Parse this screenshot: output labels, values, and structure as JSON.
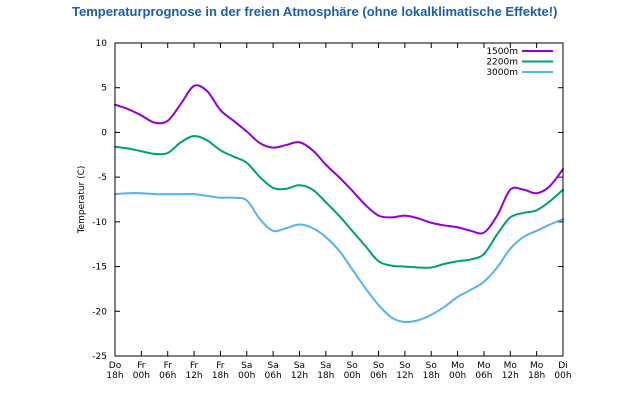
{
  "title": "Temperaturprognose in der freien Atmosphäre (ohne lokalklimatische Effekte!)",
  "chart_data": {
    "type": "line",
    "title": "Temperaturprognose in der freien Atmosphäre (ohne lokalklimatische Effekte!)",
    "xlabel": "",
    "ylabel": "Temperatur (C)",
    "ylim": [
      -25,
      10
    ],
    "yticks": [
      10,
      5,
      0,
      -5,
      -10,
      -15,
      -20,
      -25
    ],
    "grid": false,
    "legend": "top-right",
    "x_ticks": [
      {
        "day": "Do",
        "hour": "18h"
      },
      {
        "day": "Fr",
        "hour": "00h"
      },
      {
        "day": "Fr",
        "hour": "06h"
      },
      {
        "day": "Fr",
        "hour": "12h"
      },
      {
        "day": "Fr",
        "hour": "18h"
      },
      {
        "day": "Sa",
        "hour": "00h"
      },
      {
        "day": "Sa",
        "hour": "06h"
      },
      {
        "day": "Sa",
        "hour": "12h"
      },
      {
        "day": "Sa",
        "hour": "18h"
      },
      {
        "day": "So",
        "hour": "00h"
      },
      {
        "day": "So",
        "hour": "06h"
      },
      {
        "day": "So",
        "hour": "12h"
      },
      {
        "day": "So",
        "hour": "18h"
      },
      {
        "day": "Mo",
        "hour": "00h"
      },
      {
        "day": "Mo",
        "hour": "06h"
      },
      {
        "day": "Mo",
        "hour": "12h"
      },
      {
        "day": "Mo",
        "hour": "18h"
      },
      {
        "day": "Di",
        "hour": "00h"
      }
    ],
    "x": [
      "Do 18h",
      "Do 21h",
      "Fr 00h",
      "Fr 03h",
      "Fr 06h",
      "Fr 09h",
      "Fr 12h",
      "Fr 15h",
      "Fr 18h",
      "Fr 21h",
      "Sa 00h",
      "Sa 03h",
      "Sa 06h",
      "Sa 09h",
      "Sa 12h",
      "Sa 15h",
      "Sa 18h",
      "Sa 21h",
      "So 00h",
      "So 03h",
      "So 06h",
      "So 09h",
      "So 12h",
      "So 15h",
      "So 18h",
      "So 21h",
      "Mo 00h",
      "Mo 03h",
      "Mo 06h",
      "Mo 09h",
      "Mo 12h",
      "Mo 15h",
      "Mo 18h",
      "Mo 21h",
      "Di 00h"
    ],
    "series": [
      {
        "name": "1500m",
        "color": "#9400d3",
        "values": [
          3.1,
          2.6,
          1.9,
          1.1,
          1.3,
          3.2,
          5.2,
          4.6,
          2.5,
          1.3,
          0.1,
          -1.2,
          -1.7,
          -1.4,
          -1.1,
          -2.0,
          -3.6,
          -5.0,
          -6.5,
          -8.1,
          -9.3,
          -9.5,
          -9.3,
          -9.6,
          -10.1,
          -10.4,
          -10.6,
          -11.0,
          -11.2,
          -9.3,
          -6.4,
          -6.4,
          -6.8,
          -6.0,
          -4.1
        ]
      },
      {
        "name": "2200m",
        "color": "#009e73",
        "values": [
          -1.6,
          -1.8,
          -2.1,
          -2.4,
          -2.3,
          -1.1,
          -0.4,
          -0.9,
          -2.0,
          -2.7,
          -3.4,
          -5.0,
          -6.2,
          -6.3,
          -5.9,
          -6.4,
          -7.8,
          -9.3,
          -11.0,
          -12.7,
          -14.4,
          -14.9,
          -15.0,
          -15.1,
          -15.1,
          -14.7,
          -14.4,
          -14.2,
          -13.6,
          -11.4,
          -9.5,
          -9.0,
          -8.7,
          -7.7,
          -6.4
        ]
      },
      {
        "name": "3000m",
        "color": "#56b4e9",
        "values": [
          -6.9,
          -6.8,
          -6.8,
          -6.9,
          -6.9,
          -6.9,
          -6.9,
          -7.1,
          -7.3,
          -7.3,
          -7.6,
          -9.7,
          -11.0,
          -10.7,
          -10.3,
          -10.7,
          -11.7,
          -13.2,
          -15.3,
          -17.4,
          -19.3,
          -20.7,
          -21.2,
          -21.0,
          -20.4,
          -19.5,
          -18.4,
          -17.6,
          -16.7,
          -15.1,
          -13.0,
          -11.7,
          -11.0,
          -10.3,
          -9.7
        ]
      }
    ]
  }
}
